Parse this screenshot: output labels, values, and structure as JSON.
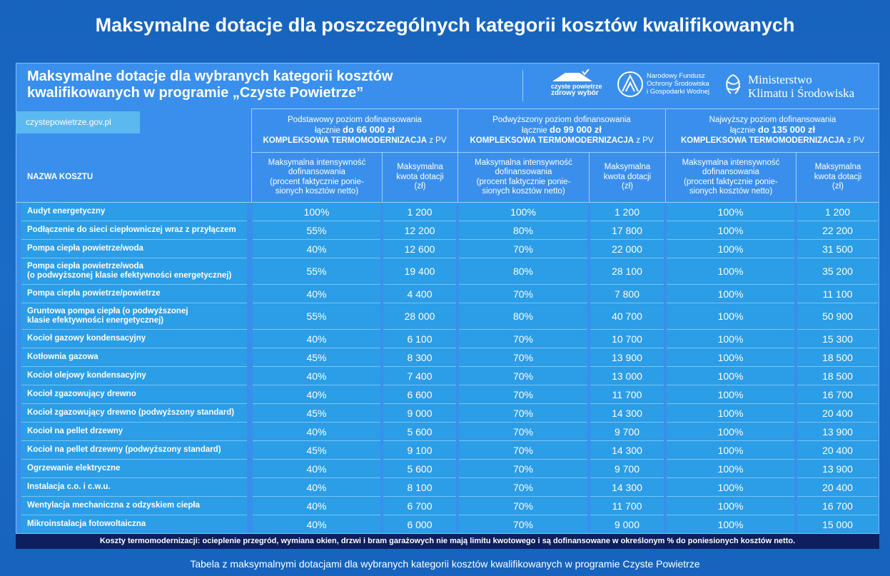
{
  "title": "Maksymalne dotacje dla poszczególnych kategorii kosztów kwalifikowanych",
  "header": {
    "title_lines": [
      "Maksymalne dotacje dla wybranych kategorii kosztów",
      "kwalifikowanych w programie „Czyste Powietrze”"
    ],
    "logos": {
      "cp": [
        "czyste powietrze",
        "zdrowy wybór"
      ],
      "nfos": [
        "Narodowy Fundusz",
        "Ochrony Środowiska",
        "i Gospodarki Wodnej"
      ],
      "ministry": [
        "Ministerstwo",
        "Klimatu i Środowiska"
      ]
    },
    "website": "czystepowietrze.gov.pl"
  },
  "levels": [
    {
      "label": "Podstawowy poziom dofinansowania",
      "prefix": "łącznie",
      "amount": "do  66 000 zł",
      "scope": "KOMPLEKSOWA TERMOMODERNIZACJA",
      "suffix": "z PV"
    },
    {
      "label": "Podwyższony poziom dofinansowania",
      "prefix": "łącznie",
      "amount": "do 99 000 zł",
      "scope": "KOMPLEKSOWA TERMOMODERNIZACJA",
      "suffix": "z PV"
    },
    {
      "label": "Najwyższy poziom dofinansowania",
      "prefix": "łącznie",
      "amount": "do 135 000 zł",
      "scope": "KOMPLEKSOWA TERMOMODERNIZACJA",
      "suffix": "z PV"
    }
  ],
  "columns": {
    "name": "NAZWA KOSZTU",
    "intensity": [
      "Maksymalna intensywność",
      "dofinansowania",
      "(procent faktycznie ponie-",
      "sionych kosztów netto)"
    ],
    "amount": [
      "Maksymalna",
      "kwota dotacji",
      "(zł)"
    ]
  },
  "rows": [
    {
      "name": [
        "Audyt energetyczny"
      ],
      "values": [
        "100%",
        "1 200",
        "100%",
        "1 200",
        "100%",
        "1 200"
      ]
    },
    {
      "name": [
        "Podłączenie do sieci ciepłowniczej wraz z przyłączem"
      ],
      "values": [
        "55%",
        "12 200",
        "80%",
        "17 800",
        "100%",
        "22 200"
      ]
    },
    {
      "name": [
        "Pompa ciepła powietrze/woda"
      ],
      "values": [
        "40%",
        "12 600",
        "70%",
        "22 000",
        "100%",
        "31 500"
      ]
    },
    {
      "name": [
        "Pompa ciepła powietrze/woda",
        "(o podwyższonej klasie efektywności energetycznej)"
      ],
      "values": [
        "55%",
        "19 400",
        "80%",
        "28 100",
        "100%",
        "35 200"
      ]
    },
    {
      "name": [
        "Pompa ciepła powietrze/powietrze"
      ],
      "values": [
        "40%",
        "4 400",
        "70%",
        "7 800",
        "100%",
        "11 100"
      ]
    },
    {
      "name": [
        "Gruntowa pompa ciepła (o podwyższonej",
        "klasie efektywności energetycznej)"
      ],
      "values": [
        "55%",
        "28 000",
        "80%",
        "40 700",
        "100%",
        "50 900"
      ]
    },
    {
      "name": [
        "Kocioł gazowy kondensacyjny"
      ],
      "values": [
        "40%",
        "6 100",
        "70%",
        "10 700",
        "100%",
        "15 300"
      ]
    },
    {
      "name": [
        "Kotłownia gazowa"
      ],
      "values": [
        "45%",
        "8 300",
        "70%",
        "13 900",
        "100%",
        "18 500"
      ]
    },
    {
      "name": [
        "Kocioł olejowy kondensacyjny"
      ],
      "values": [
        "40%",
        "7 400",
        "70%",
        "13 000",
        "100%",
        "18 500"
      ]
    },
    {
      "name": [
        "Kocioł zgazowujący drewno"
      ],
      "values": [
        "40%",
        "6 600",
        "70%",
        "11 700",
        "100%",
        "16 700"
      ]
    },
    {
      "name": [
        "Kocioł zgazowujący drewno (podwyższony standard)"
      ],
      "values": [
        "45%",
        "9 000",
        "70%",
        "14 300",
        "100%",
        "20 400"
      ]
    },
    {
      "name": [
        "Kocioł na pellet drzewny"
      ],
      "values": [
        "40%",
        "5 600",
        "70%",
        "9 700",
        "100%",
        "13 900"
      ]
    },
    {
      "name": [
        "Kocioł na pellet drzewny (podwyższony standard)"
      ],
      "values": [
        "45%",
        "9 100",
        "70%",
        "14 300",
        "100%",
        "20 400"
      ]
    },
    {
      "name": [
        "Ogrzewanie elektryczne"
      ],
      "values": [
        "40%",
        "5 600",
        "70%",
        "9 700",
        "100%",
        "13 900"
      ]
    },
    {
      "name": [
        "Instalacja c.o. i c.w.u."
      ],
      "values": [
        "40%",
        "8 100",
        "70%",
        "14 300",
        "100%",
        "20 400"
      ]
    },
    {
      "name": [
        "Wentylacja mechaniczna z odzyskiem ciepła"
      ],
      "values": [
        "40%",
        "6 700",
        "70%",
        "11 700",
        "100%",
        "16 700"
      ]
    },
    {
      "name": [
        "Mikroinstalacja fotowoltaiczna"
      ],
      "values": [
        "40%",
        "6 000",
        "70%",
        "9 000",
        "100%",
        "15 000"
      ]
    }
  ],
  "footnote": "Koszty  termomodernizacji: ocieplenie przegród, wymiana okien, drzwi i bram garażowych nie mają limitu kwotowego i są dofinansowane w określonym % do poniesionych kosztów netto.",
  "caption": "Tabela z maksymalnymi dotacjami dla wybranych kategorii kosztów kwalifikowanych w programie Czyste Powietrze"
}
